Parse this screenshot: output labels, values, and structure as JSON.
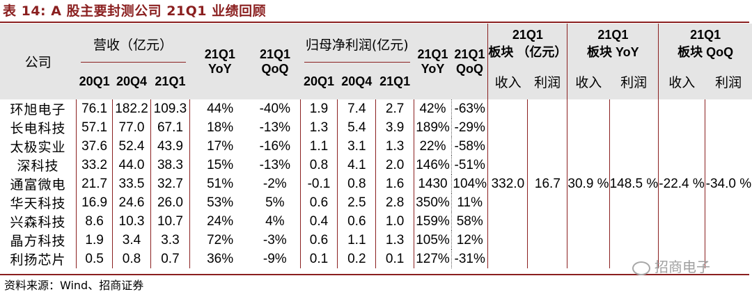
{
  "title": "表 14:  A 股主要封测公司 21Q1 业绩回顾",
  "header": {
    "company": "公司",
    "revenue_group": "营收（亿元）",
    "profit_group": "归母净利润(亿元)",
    "periods": [
      "20Q1",
      "20Q4",
      "21Q1"
    ],
    "yoy": "21Q1 YoY",
    "qoq": "21Q1 QoQ",
    "block_amount": "21Q1 板块 （亿元）",
    "block_yoy": "21Q1 板块 YoY",
    "block_qoq": "21Q1 板块 QoQ",
    "income": "收入",
    "profit": "利润"
  },
  "rows": [
    {
      "company": "环旭电子",
      "rev": [
        "76.1",
        "182.2",
        "109.3"
      ],
      "rev_yoy": "44%",
      "rev_qoq": "-40%",
      "np": [
        "1.9",
        "7.4",
        "2.7"
      ],
      "np_yoy": "42%",
      "np_qoq": "-63%"
    },
    {
      "company": "长电科技",
      "rev": [
        "57.1",
        "77.0",
        "67.1"
      ],
      "rev_yoy": "18%",
      "rev_qoq": "-13%",
      "np": [
        "1.3",
        "5.4",
        "3.9"
      ],
      "np_yoy": "189%",
      "np_qoq": "-29%"
    },
    {
      "company": "太极实业",
      "rev": [
        "37.6",
        "52.4",
        "43.9"
      ],
      "rev_yoy": "17%",
      "rev_qoq": "-16%",
      "np": [
        "1.1",
        "3.1",
        "1.3"
      ],
      "np_yoy": "22%",
      "np_qoq": "-58%"
    },
    {
      "company": "深科技",
      "rev": [
        "33.2",
        "44.0",
        "38.3"
      ],
      "rev_yoy": "15%",
      "rev_qoq": "-13%",
      "np": [
        "0.8",
        "4.1",
        "2.0"
      ],
      "np_yoy": "146%",
      "np_qoq": "-51%"
    },
    {
      "company": "通富微电",
      "rev": [
        "21.7",
        "33.5",
        "32.7"
      ],
      "rev_yoy": "51%",
      "rev_qoq": "-2%",
      "np": [
        "-0.1",
        "0.8",
        "1.6"
      ],
      "np_yoy": "1430",
      "np_qoq": "104%"
    },
    {
      "company": "华天科技",
      "rev": [
        "16.9",
        "24.6",
        "26.0"
      ],
      "rev_yoy": "53%",
      "rev_qoq": "5%",
      "np": [
        "0.6",
        "2.5",
        "2.8"
      ],
      "np_yoy": "350%",
      "np_qoq": "11%"
    },
    {
      "company": "兴森科技",
      "rev": [
        "8.6",
        "10.3",
        "10.7"
      ],
      "rev_yoy": "24%",
      "rev_qoq": "4%",
      "np": [
        "0.4",
        "0.6",
        "1.0"
      ],
      "np_yoy": "159%",
      "np_qoq": "58%"
    },
    {
      "company": "晶方科技",
      "rev": [
        "1.9",
        "3.4",
        "3.3"
      ],
      "rev_yoy": "72%",
      "rev_qoq": "-3%",
      "np": [
        "0.6",
        "1.1",
        "1.3"
      ],
      "np_yoy": "105%",
      "np_qoq": "12%"
    },
    {
      "company": "利扬芯片",
      "rev": [
        "0.5",
        "0.8",
        "0.7"
      ],
      "rev_yoy": "36%",
      "rev_qoq": "-9%",
      "np": [
        "0.1",
        "0.2",
        "0.1"
      ],
      "np_yoy": "127%",
      "np_qoq": "-31%"
    }
  ],
  "block": {
    "income": "332.0",
    "profit": "16.7",
    "yoy_income": "30.9 %",
    "yoy_profit": "148.5 %",
    "qoq_income": "-22.4 %",
    "qoq_profit": "-34.0 %"
  },
  "source": "资料来源：Wind、招商证券",
  "watermark": "招商电子",
  "colors": {
    "accent": "#8a1f1f",
    "header_bg": "#e5e5e5"
  }
}
